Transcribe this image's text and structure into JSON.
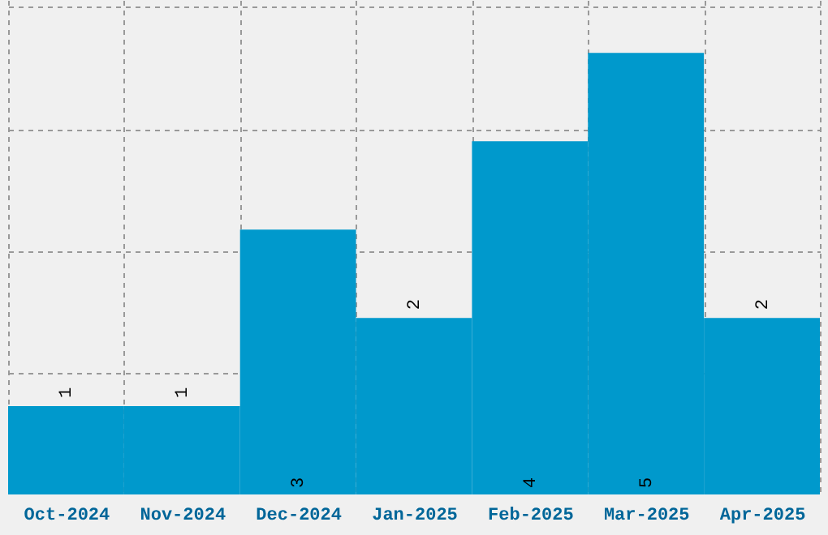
{
  "chart_data": {
    "type": "bar",
    "categories": [
      "Oct-2024",
      "Nov-2024",
      "Dec-2024",
      "Jan-2025",
      "Feb-2025",
      "Mar-2025",
      "Apr-2025"
    ],
    "values": [
      1,
      1,
      3,
      2,
      4,
      5,
      2
    ],
    "color": "#0099cc",
    "data_labels": true,
    "relative": false,
    "ylim": [
      0,
      5.6
    ],
    "yticks": [
      {
        "value": 1.38,
        "label": null
      },
      {
        "value": 2.76,
        "label": null
      },
      {
        "value": 4.14,
        "label": null
      },
      {
        "value": 5.52,
        "label": null
      }
    ],
    "grid": true,
    "tick_labels": "x"
  }
}
